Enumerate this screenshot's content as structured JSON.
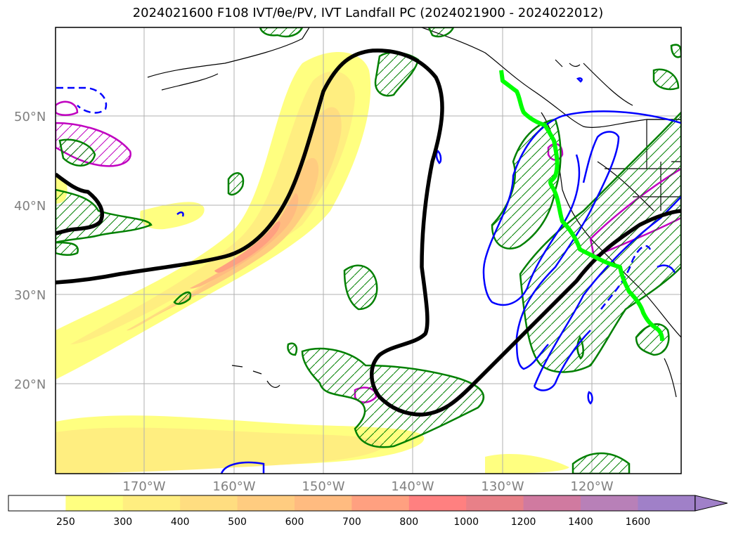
{
  "title": "2024021600 F108 IVT/θe/PV, IVT Landfall PC (2024021900 - 2024022012)",
  "lat_labels": [
    "50°N",
    "40°N",
    "30°N",
    "20°N"
  ],
  "lon_labels": [
    "170°W",
    "160°W",
    "150°W",
    "140°W",
    "130°W",
    "120°W"
  ],
  "colorbar": {
    "labels": [
      "250",
      "300",
      "400",
      "500",
      "600",
      "700",
      "800",
      "1000",
      "1200",
      "1400",
      "1600"
    ],
    "colors": [
      "#ffffff",
      "#ffff80",
      "#ffee80",
      "#ffdd80",
      "#ffcc80",
      "#ffbb80",
      "#ffa080",
      "#ff8080",
      "#e88088",
      "#d07aa0",
      "#b880b8",
      "#a080c8"
    ]
  },
  "legend_colors": {
    "ivt_contour": "#000000",
    "theta_e_contour": "#0000ff",
    "pv_contour": "#008000",
    "pv_hatched_magenta": "#c000c0",
    "landfall_line": "#00ff00"
  }
}
